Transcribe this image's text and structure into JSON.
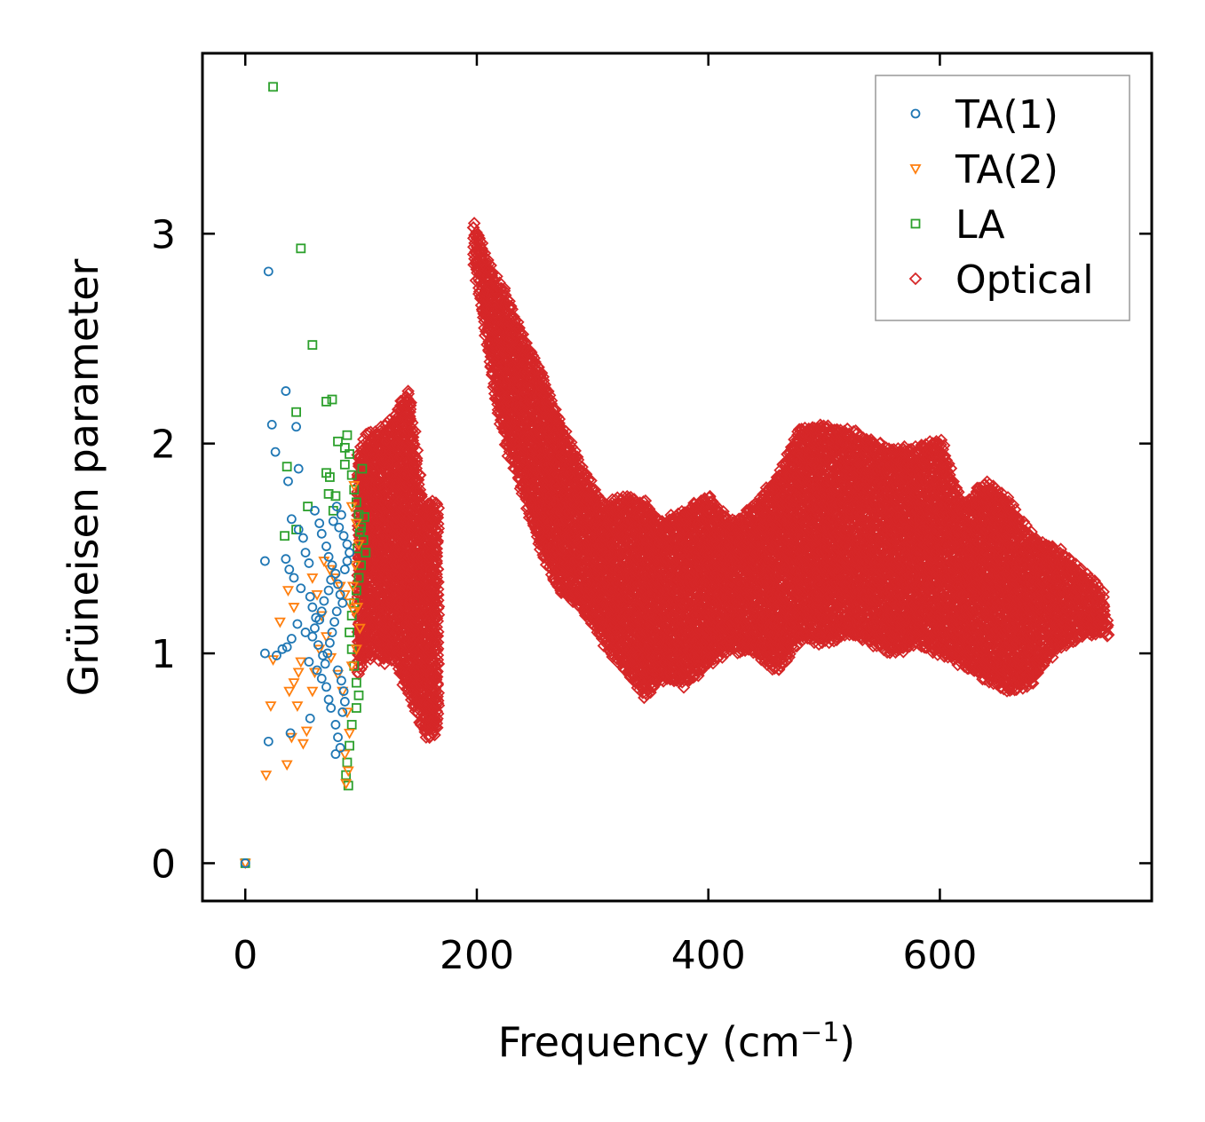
{
  "chart_data": {
    "type": "scatter",
    "title": "",
    "xlabel": "Frequency (cm",
    "xlabel_sup": "−1",
    "xlabel_tail": ")",
    "ylabel": "Grüneisen parameter",
    "xlim": [
      -37,
      783
    ],
    "ylim": [
      -0.18,
      3.86
    ],
    "xticks": [
      0,
      200,
      400,
      600
    ],
    "xtick_labels": [
      "0",
      "200",
      "400",
      "600"
    ],
    "yticks": [
      0,
      1,
      2,
      3
    ],
    "ytick_labels": [
      "0",
      "1",
      "2",
      "3"
    ],
    "grid": false,
    "legend_position": "top-right",
    "series": [
      {
        "name": "TA(1)",
        "marker": "circle",
        "color": "#1f77b4",
        "points": [
          [
            0,
            0
          ],
          [
            20,
            2.82
          ],
          [
            23,
            2.09
          ],
          [
            26,
            1.96
          ],
          [
            35,
            2.25
          ],
          [
            44,
            2.08
          ],
          [
            46,
            1.88
          ],
          [
            37,
            1.82
          ],
          [
            40,
            1.64
          ],
          [
            46,
            1.59
          ],
          [
            50,
            1.55
          ],
          [
            52,
            1.48
          ],
          [
            55,
            1.43
          ],
          [
            17,
            1.44
          ],
          [
            35,
            1.45
          ],
          [
            38,
            1.4
          ],
          [
            42,
            1.36
          ],
          [
            48,
            1.31
          ],
          [
            56,
            1.27
          ],
          [
            58,
            1.22
          ],
          [
            61,
            1.17
          ],
          [
            45,
            1.14
          ],
          [
            52,
            1.1
          ],
          [
            40,
            1.07
          ],
          [
            32,
            1.02
          ],
          [
            17,
            1.0
          ],
          [
            27,
            0.99
          ],
          [
            36,
            1.03
          ],
          [
            55,
            0.96
          ],
          [
            62,
            0.92
          ],
          [
            66,
            0.88
          ],
          [
            70,
            0.84
          ],
          [
            72,
            0.78
          ],
          [
            74,
            0.74
          ],
          [
            56,
            0.69
          ],
          [
            39,
            0.62
          ],
          [
            20,
            0.58
          ],
          [
            78,
            0.66
          ],
          [
            80,
            0.6
          ],
          [
            82,
            0.55
          ],
          [
            78,
            0.52
          ],
          [
            60,
            1.68
          ],
          [
            64,
            1.62
          ],
          [
            66,
            1.57
          ],
          [
            70,
            1.51
          ],
          [
            72,
            1.46
          ],
          [
            75,
            1.42
          ],
          [
            78,
            1.38
          ],
          [
            80,
            1.33
          ],
          [
            82,
            1.28
          ],
          [
            84,
            1.24
          ],
          [
            79,
            1.2
          ],
          [
            77,
            1.15
          ],
          [
            75,
            1.1
          ],
          [
            73,
            1.05
          ],
          [
            71,
            1.0
          ],
          [
            69,
            0.95
          ],
          [
            80,
            0.92
          ],
          [
            83,
            0.87
          ],
          [
            85,
            0.82
          ],
          [
            86,
            0.77
          ],
          [
            84,
            0.72
          ],
          [
            76,
            1.63
          ],
          [
            81,
            1.6
          ],
          [
            85,
            1.56
          ],
          [
            88,
            1.52
          ],
          [
            90,
            1.48
          ],
          [
            88,
            1.44
          ],
          [
            86,
            1.4
          ],
          [
            74,
            1.35
          ],
          [
            72,
            1.3
          ],
          [
            68,
            1.25
          ],
          [
            66,
            1.2
          ],
          [
            64,
            1.16
          ],
          [
            60,
            1.12
          ],
          [
            58,
            1.08
          ],
          [
            63,
            1.04
          ],
          [
            67,
            0.99
          ],
          [
            79,
            1.7
          ],
          [
            83,
            1.66
          ]
        ]
      },
      {
        "name": "TA(2)",
        "marker": "triangle-down",
        "color": "#ff7f0e",
        "points": [
          [
            0,
            0
          ],
          [
            18,
            0.42
          ],
          [
            22,
            0.75
          ],
          [
            24,
            0.97
          ],
          [
            30,
            1.15
          ],
          [
            36,
            0.47
          ],
          [
            40,
            0.6
          ],
          [
            45,
            0.75
          ],
          [
            50,
            0.57
          ],
          [
            53,
            0.63
          ],
          [
            38,
            0.82
          ],
          [
            42,
            0.86
          ],
          [
            46,
            0.91
          ],
          [
            48,
            0.96
          ],
          [
            37,
            1.3
          ],
          [
            42,
            1.22
          ],
          [
            58,
            1.36
          ],
          [
            62,
            1.28
          ],
          [
            66,
            1.18
          ],
          [
            70,
            1.08
          ],
          [
            74,
            0.98
          ],
          [
            80,
            0.9
          ],
          [
            84,
            0.82
          ],
          [
            88,
            0.72
          ],
          [
            90,
            0.62
          ],
          [
            86,
            0.52
          ],
          [
            89,
            0.44
          ],
          [
            87,
            0.38
          ],
          [
            92,
            1.7
          ],
          [
            94,
            1.8
          ],
          [
            96,
            1.62
          ],
          [
            98,
            1.52
          ],
          [
            95,
            1.42
          ],
          [
            93,
            1.32
          ],
          [
            97,
            1.22
          ],
          [
            99,
            1.12
          ],
          [
            96,
            1.02
          ],
          [
            92,
            0.94
          ],
          [
            68,
            1.44
          ],
          [
            73,
            1.4
          ],
          [
            77,
            1.36
          ],
          [
            82,
            1.32
          ],
          [
            86,
            1.28
          ],
          [
            90,
            1.24
          ],
          [
            94,
            1.2
          ],
          [
            64,
            1.02
          ],
          [
            58,
            0.82
          ],
          [
            60,
            0.91
          ]
        ]
      },
      {
        "name": "LA",
        "marker": "square",
        "color": "#2ca02c",
        "points": [
          [
            0,
            0
          ],
          [
            24,
            3.7
          ],
          [
            48,
            2.93
          ],
          [
            58,
            2.47
          ],
          [
            70,
            2.2
          ],
          [
            75,
            2.21
          ],
          [
            44,
            2.15
          ],
          [
            80,
            2.01
          ],
          [
            36,
            1.89
          ],
          [
            70,
            1.86
          ],
          [
            73,
            1.84
          ],
          [
            54,
            1.7
          ],
          [
            72,
            1.76
          ],
          [
            78,
            1.75
          ],
          [
            76,
            1.68
          ],
          [
            34,
            1.56
          ],
          [
            44,
            1.59
          ],
          [
            86,
            1.9
          ],
          [
            90,
            1.95
          ],
          [
            92,
            1.85
          ],
          [
            94,
            1.78
          ],
          [
            96,
            1.72
          ],
          [
            98,
            1.66
          ],
          [
            100,
            1.6
          ],
          [
            102,
            1.54
          ],
          [
            104,
            1.48
          ],
          [
            100,
            1.42
          ],
          [
            98,
            1.36
          ],
          [
            96,
            1.3
          ],
          [
            94,
            1.24
          ],
          [
            92,
            1.18
          ],
          [
            90,
            1.1
          ],
          [
            92,
            1.02
          ],
          [
            94,
            0.94
          ],
          [
            96,
            0.86
          ],
          [
            98,
            0.8
          ],
          [
            96,
            0.74
          ],
          [
            92,
            0.66
          ],
          [
            90,
            0.56
          ],
          [
            88,
            0.48
          ],
          [
            87,
            0.42
          ],
          [
            89,
            0.37
          ],
          [
            86,
            1.98
          ],
          [
            88,
            2.04
          ],
          [
            101,
            1.88
          ],
          [
            103,
            1.65
          ],
          [
            99,
            1.58
          ],
          [
            97,
            1.5
          ]
        ]
      },
      {
        "name": "Optical",
        "marker": "diamond",
        "color": "#d62728",
        "bands": [
          {
            "x": [
              98,
              104,
              112,
              120,
              128,
              135,
              142,
              148,
              154,
              160,
              166
            ],
            "ylo": [
              0.9,
              0.98,
              1.0,
              0.96,
              0.98,
              0.88,
              0.8,
              0.72,
              0.62,
              0.6,
              0.64
            ],
            "yhi": [
              1.95,
              2.03,
              2.05,
              2.08,
              2.12,
              2.2,
              2.26,
              1.95,
              1.68,
              1.72,
              1.7
            ]
          },
          {
            "x": [
              198,
              205,
              215,
              225,
              240,
              255,
              270,
              290,
              310,
              330,
              345,
              360,
              380,
              400,
              420,
              440,
              460,
              480,
              500,
              520,
              540,
              560,
              580,
              600,
              620,
              640,
              660,
              680,
              700,
              720,
              740,
              745
            ],
            "ylo": [
              2.85,
              2.6,
              2.25,
              2.0,
              1.75,
              1.5,
              1.3,
              1.22,
              1.05,
              0.9,
              0.8,
              0.88,
              0.85,
              0.95,
              1.02,
              1.0,
              0.92,
              1.08,
              1.05,
              1.1,
              1.05,
              1.0,
              1.05,
              1.0,
              0.95,
              0.88,
              0.82,
              0.86,
              1.02,
              1.08,
              1.1,
              1.08
            ],
            "yhi": [
              3.05,
              2.95,
              2.8,
              2.72,
              2.5,
              2.35,
              2.12,
              1.9,
              1.7,
              1.75,
              1.72,
              1.62,
              1.68,
              1.75,
              1.62,
              1.7,
              1.85,
              2.08,
              2.08,
              2.06,
              2.02,
              1.96,
              1.98,
              2.02,
              1.7,
              1.82,
              1.72,
              1.55,
              1.5,
              1.4,
              1.3,
              1.15
            ]
          }
        ]
      }
    ]
  }
}
